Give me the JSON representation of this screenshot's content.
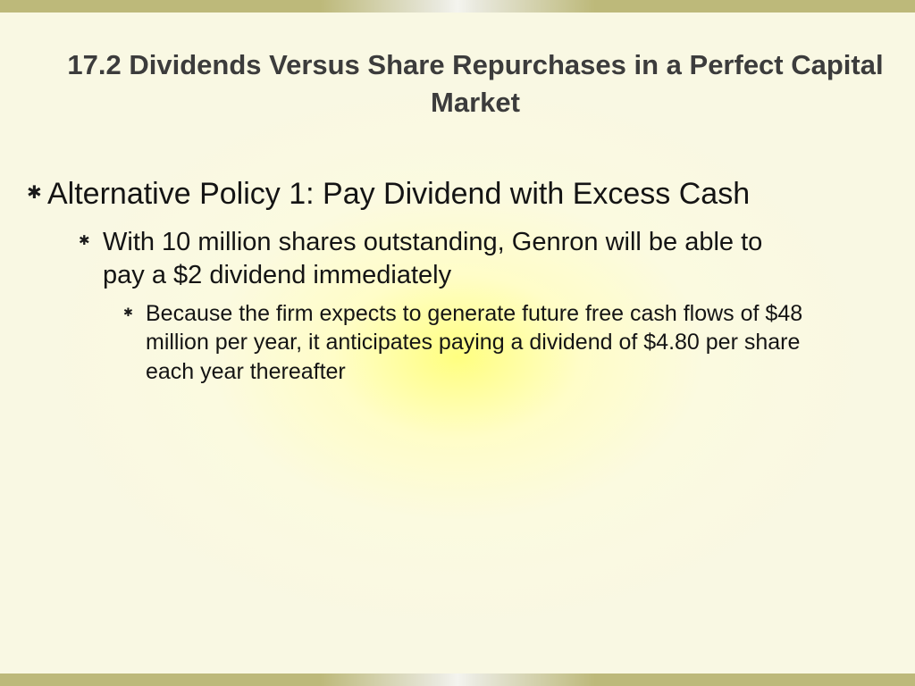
{
  "slide": {
    "title": "17.2 Dividends Versus Share Repurchases in a Perfect Capital Market",
    "bullets": {
      "level1": {
        "glyph": "✱",
        "text": "Alternative Policy 1: Pay Dividend with Excess Cash"
      },
      "level2": {
        "glyph": "✱",
        "text": "With 10 million shares outstanding, Genron will be able to pay a $2 dividend immediately"
      },
      "level3": {
        "glyph": "✱",
        "text": "Because the firm expects to generate future free cash flows of $48 million per year, it anticipates paying a dividend of $4.80 per share each year thereafter"
      }
    }
  },
  "style": {
    "title_color": "#3c3c3c",
    "body_color": "#141414",
    "bar_color_dark": "#bdb97a",
    "bar_color_light": "#f4f4ef",
    "bg_center": "#ffff80",
    "bg_edge": "#f9f8e3",
    "title_fontsize": 31,
    "l1_fontsize": 34,
    "l2_fontsize": 29,
    "l3_fontsize": 25
  }
}
